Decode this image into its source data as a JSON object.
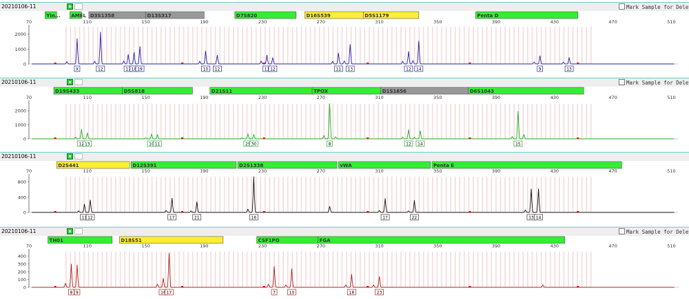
{
  "panels": [
    {
      "sample_id": "20210106-11",
      "mark_label": "Mark Sample for Deletion",
      "color": "#2222aa",
      "ylim": [
        0,
        2400
      ],
      "yticks": [
        "2000",
        "1000",
        "0"
      ],
      "loci": [
        {
          "name": "Yin...",
          "start": 81,
          "end": 89,
          "color": "green"
        },
        {
          "name": "AMEL",
          "start": 98,
          "end": 106,
          "color": "green"
        },
        {
          "name": "D3S1358",
          "start": 111,
          "end": 150,
          "color": "gray"
        },
        {
          "name": "D13S317",
          "start": 150,
          "end": 190,
          "color": "gray"
        },
        {
          "name": "D7S820",
          "start": 211,
          "end": 253,
          "color": "green"
        },
        {
          "name": "D16S539",
          "start": 259,
          "end": 299,
          "color": "yellow"
        },
        {
          "name": "D5S1179",
          "start": 299,
          "end": 337,
          "color": "yellow"
        },
        {
          "name": "Penta D",
          "start": 376,
          "end": 446,
          "color": "green"
        }
      ],
      "peaks": [
        {
          "x": 103,
          "h": 1700,
          "label": "X"
        },
        {
          "x": 119,
          "h": 2150,
          "label": "12"
        },
        {
          "x": 138,
          "h": 650,
          "label": "17"
        },
        {
          "x": 142,
          "h": 780,
          "label": "18"
        },
        {
          "x": 146,
          "h": 1180,
          "label": "19"
        },
        {
          "x": 191,
          "h": 880,
          "label": "10"
        },
        {
          "x": 199,
          "h": 600,
          "label": "12"
        },
        {
          "x": 233,
          "h": 600,
          "label": "11"
        },
        {
          "x": 237,
          "h": 430,
          "label": "12"
        },
        {
          "x": 282,
          "h": 750,
          "label": "11"
        },
        {
          "x": 290,
          "h": 1320,
          "label": "13"
        },
        {
          "x": 330,
          "h": 850,
          "label": "12"
        },
        {
          "x": 337,
          "h": 1550,
          "label": "14"
        },
        {
          "x": 420,
          "h": 560,
          "label": "9"
        },
        {
          "x": 440,
          "h": 430,
          "label": "13"
        }
      ],
      "small": [
        [
          96,
          150
        ],
        [
          115,
          180
        ],
        [
          135,
          200
        ],
        [
          187,
          180
        ],
        [
          229,
          200
        ],
        [
          278,
          180
        ],
        [
          286,
          200
        ],
        [
          326,
          180
        ],
        [
          333,
          220
        ],
        [
          416,
          140
        ],
        [
          436,
          130
        ]
      ]
    },
    {
      "sample_id": "20210106-11",
      "mark_label": "Mark Sample for Deletion",
      "color": "#22aa22",
      "ylim": [
        0,
        2400
      ],
      "yticks": [
        "2000",
        "1000",
        "0"
      ],
      "loci": [
        {
          "name": "D19S433",
          "start": 87,
          "end": 134,
          "color": "green"
        },
        {
          "name": "D5S818",
          "start": 134,
          "end": 182,
          "color": "green"
        },
        {
          "name": "D21S11",
          "start": 194,
          "end": 264,
          "color": "green"
        },
        {
          "name": "TPOX",
          "start": 264,
          "end": 311,
          "color": "green"
        },
        {
          "name": "D1S1656",
          "start": 311,
          "end": 371,
          "color": "gray"
        },
        {
          "name": "D6S1043",
          "start": 371,
          "end": 450,
          "color": "green"
        }
      ],
      "peaks": [
        {
          "x": 106,
          "h": 700,
          "label": "12"
        },
        {
          "x": 110,
          "h": 430,
          "label": "13"
        },
        {
          "x": 154,
          "h": 330,
          "label": "10"
        },
        {
          "x": 158,
          "h": 300,
          "label": "11"
        },
        {
          "x": 220,
          "h": 340,
          "label": "29"
        },
        {
          "x": 224,
          "h": 310,
          "label": "30"
        },
        {
          "x": 276,
          "h": 2700,
          "label": "8"
        },
        {
          "x": 330,
          "h": 660,
          "label": "12"
        },
        {
          "x": 338,
          "h": 600,
          "label": "14"
        },
        {
          "x": 405,
          "h": 1970,
          "label": "15"
        }
      ],
      "small": [
        [
          102,
          120
        ],
        [
          150,
          80
        ],
        [
          216,
          80
        ],
        [
          272,
          240
        ],
        [
          280,
          140
        ],
        [
          326,
          120
        ],
        [
          334,
          110
        ],
        [
          401,
          160
        ],
        [
          409,
          300
        ]
      ]
    },
    {
      "sample_id": "20210106-11",
      "mark_label": "",
      "color": "#111111",
      "ylim": [
        0,
        900
      ],
      "yticks": [
        "800",
        "400",
        "0"
      ],
      "loci": [
        {
          "name": "D2S441",
          "start": 89,
          "end": 139,
          "color": "yellow"
        },
        {
          "name": "D12S391",
          "start": 140,
          "end": 212,
          "color": "green"
        },
        {
          "name": "D2S1338",
          "start": 213,
          "end": 281,
          "color": "green"
        },
        {
          "name": "vWA",
          "start": 282,
          "end": 345,
          "color": "green"
        },
        {
          "name": "Penta E",
          "start": 346,
          "end": 476,
          "color": "green"
        }
      ],
      "peaks": [
        {
          "x": 108,
          "h": 220,
          "label": "11"
        },
        {
          "x": 112,
          "h": 330,
          "label": "12"
        },
        {
          "x": 168,
          "h": 380,
          "label": "17"
        },
        {
          "x": 185,
          "h": 280,
          "label": "21"
        },
        {
          "x": 224,
          "h": 940,
          "label": "16"
        },
        {
          "x": 314,
          "h": 370,
          "label": "17"
        },
        {
          "x": 334,
          "h": 320,
          "label": "22"
        },
        {
          "x": 414,
          "h": 620,
          "label": "13"
        },
        {
          "x": 419,
          "h": 620,
          "label": "14"
        }
      ],
      "small": [
        [
          104,
          40
        ],
        [
          164,
          50
        ],
        [
          181,
          40
        ],
        [
          220,
          80
        ],
        [
          276,
          160
        ],
        [
          310,
          50
        ],
        [
          330,
          40
        ],
        [
          410,
          60
        ]
      ]
    },
    {
      "sample_id": "20210106-11",
      "mark_label": "Mark Sample for Deletion",
      "color": "#aa2222",
      "ylim": [
        0,
        440
      ],
      "yticks": [
        "400",
        "300",
        "200",
        "100",
        "0"
      ],
      "loci": [
        {
          "name": "TH01",
          "start": 83,
          "end": 127,
          "color": "green"
        },
        {
          "name": "D18S51",
          "start": 132,
          "end": 203,
          "color": "yellow"
        },
        {
          "name": "CSF1PO",
          "start": 226,
          "end": 268,
          "color": "green"
        },
        {
          "name": "FGA",
          "start": 268,
          "end": 437,
          "color": "green"
        }
      ],
      "peaks": [
        {
          "x": 99,
          "h": 300,
          "label": "8"
        },
        {
          "x": 103,
          "h": 290,
          "label": "9"
        },
        {
          "x": 162,
          "h": 120,
          "label": "16"
        },
        {
          "x": 166,
          "h": 440,
          "label": "17"
        },
        {
          "x": 238,
          "h": 270,
          "label": "7"
        },
        {
          "x": 250,
          "h": 240,
          "label": "10"
        },
        {
          "x": 291,
          "h": 170,
          "label": "18"
        },
        {
          "x": 310,
          "h": 140,
          "label": "23"
        }
      ],
      "small": [
        [
          95,
          50
        ],
        [
          158,
          40
        ],
        [
          234,
          40
        ],
        [
          246,
          30
        ],
        [
          287,
          30
        ],
        [
          306,
          30
        ],
        [
          422,
          30
        ]
      ]
    }
  ],
  "xticks": [
    "70",
    "110",
    "150",
    "190",
    "230",
    "270",
    "310",
    "350",
    "390",
    "430",
    "470",
    "510"
  ]
}
